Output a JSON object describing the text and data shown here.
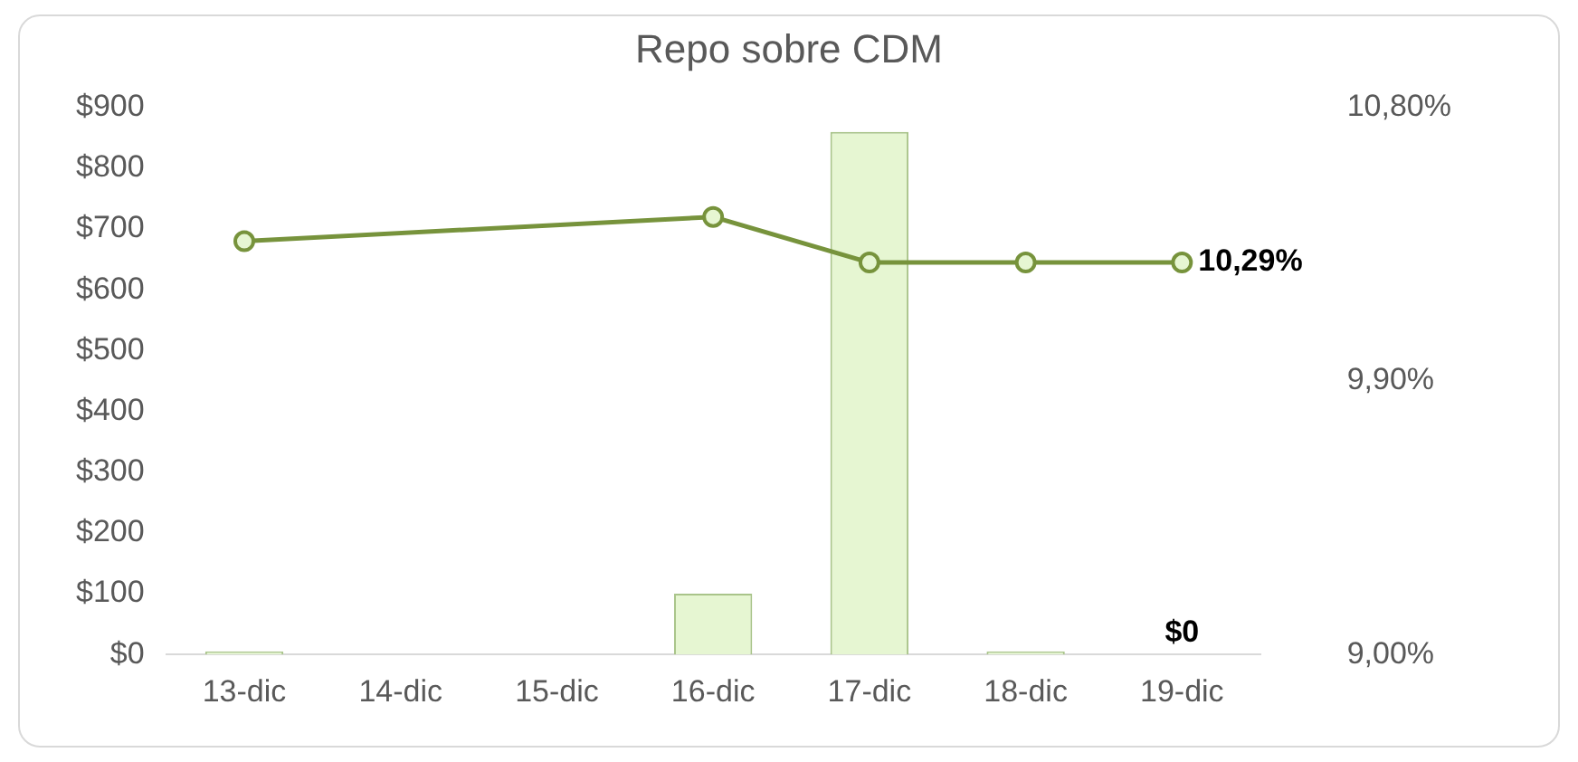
{
  "chart_data": {
    "type": "bar",
    "title": "Repo sobre CDM",
    "categories": [
      "13-dic",
      "14-dic",
      "15-dic",
      "16-dic",
      "17-dic",
      "18-dic",
      "19-dic"
    ],
    "series": [
      {
        "color": "#e6f6d2",
        "values": [
          5,
          0,
          0,
          100,
          860,
          5,
          0
        ],
        "value_labels": [
          null,
          null,
          null,
          null,
          null,
          null,
          "$0"
        ]
      },
      {
        "type": "line",
        "axis": "y2",
        "color": "#77933c",
        "marker": "circle",
        "values": [
          10.36,
          null,
          null,
          10.44,
          10.29,
          10.29,
          10.29
        ],
        "value_labels": [
          null,
          null,
          null,
          null,
          null,
          null,
          "10,29%"
        ]
      }
    ],
    "ylim": [
      0,
      900
    ],
    "yticks": [
      {
        "value": 0,
        "label": "$0"
      },
      {
        "value": 100,
        "label": "$100"
      },
      {
        "value": 200,
        "label": "$200"
      },
      {
        "value": 300,
        "label": "$300"
      },
      {
        "value": 400,
        "label": "$400"
      },
      {
        "value": 500,
        "label": "$500"
      },
      {
        "value": 600,
        "label": "$600"
      },
      {
        "value": 700,
        "label": "$700"
      },
      {
        "value": 800,
        "label": "$800"
      },
      {
        "value": 900,
        "label": "$900"
      }
    ],
    "y2lim": [
      9,
      10.8
    ],
    "y2ticks": [
      {
        "value": 9,
        "label": "9,00%"
      },
      {
        "value": 9.9,
        "label": "9,90%"
      },
      {
        "value": 10.8,
        "label": "10,80%"
      }
    ],
    "grid": false,
    "legend": false
  }
}
